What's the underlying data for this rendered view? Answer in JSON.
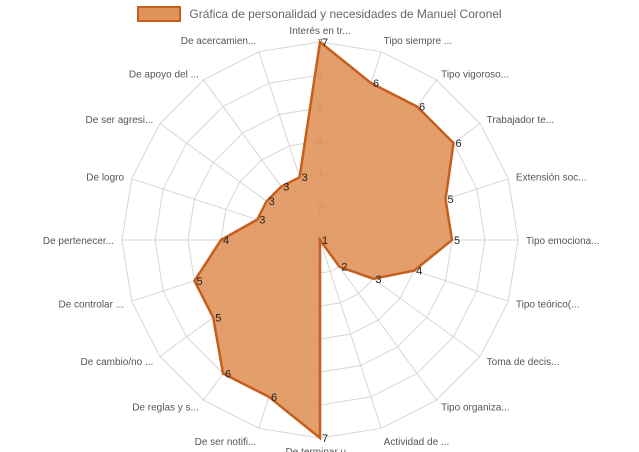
{
  "chart_data": {
    "type": "radar",
    "title": "",
    "legend_position": "top",
    "series": [
      {
        "name": "Gráfica de personalidad y necesidades de Manuel Coronel",
        "fill_color": "#e0945c",
        "stroke_color": "#c65f1c",
        "values": [
          7,
          6,
          6,
          6,
          5,
          5,
          4,
          3,
          2,
          1,
          7,
          6,
          6,
          5,
          5,
          4,
          3,
          3,
          3,
          3
        ]
      }
    ],
    "categories": [
      "Interés en tr...",
      "Tipo siempre ...",
      "Tipo vigoroso...",
      "Trabajador te...",
      "Extensión soc...",
      "Tipo emociona...",
      "Tipo teórico(...",
      "Toma de decis...",
      "Tipo organiza...",
      "Actividad de ...",
      "De terminar u...",
      "De ser notifi...",
      "De reglas y s...",
      "De cambio/no ...",
      "De controlar ...",
      "De pertenecer...",
      "De logro",
      "De ser agresi...",
      "De apoyo del ...",
      "De acercamien..."
    ],
    "r_min": 1,
    "r_max": 7,
    "ticks": [
      "1",
      "2",
      "3",
      "4",
      "5",
      "6",
      "7"
    ],
    "grid": true
  }
}
